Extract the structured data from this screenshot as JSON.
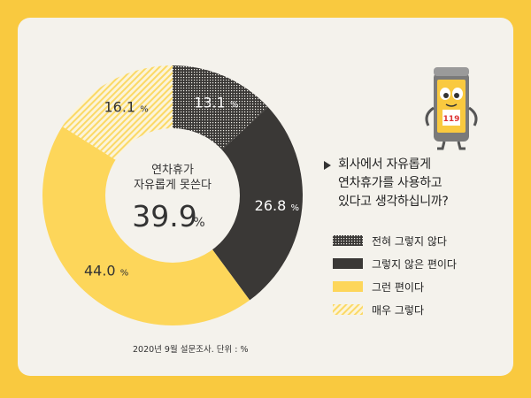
{
  "question": {
    "lines": [
      "회사에서 자유롭게",
      "연차휴가를 사용하고",
      "있다고 생각하십니까?"
    ]
  },
  "center": {
    "line1": "연차휴가",
    "line2": "자유롭게 못쓴다",
    "value": "39.9",
    "unit": "%"
  },
  "source": "2020년 9월 설문조사. 단위 : %",
  "colors": {
    "background": "#f9c93f",
    "card": "#f4f2ec",
    "dark": "#3a3836",
    "yellow": "#fdd65a",
    "label_light": "#ffffff",
    "label_dark": "#333333"
  },
  "chart_data": {
    "type": "pie",
    "donut": true,
    "slices": [
      {
        "name": "전혀 그렇지 않다",
        "value": 13.1,
        "label": "13.1",
        "pattern": "dark-dots"
      },
      {
        "name": "그렇지 않은 편이다",
        "value": 26.8,
        "label": "26.8",
        "pattern": "dark-solid"
      },
      {
        "name": "그런 편이다",
        "value": 44.0,
        "label": "44.0",
        "pattern": "yellow-solid"
      },
      {
        "name": "매우 그렇다",
        "value": 16.1,
        "label": "16.1",
        "pattern": "yellow-hatch"
      }
    ],
    "legend_position": "right"
  }
}
